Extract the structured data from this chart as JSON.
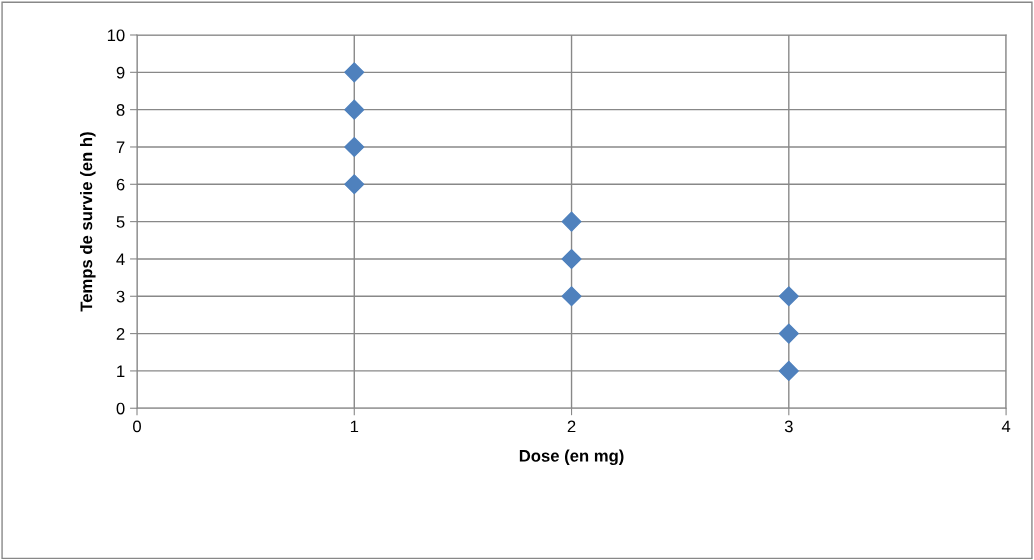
{
  "chart_data": {
    "type": "scatter",
    "xlabel": "Dose (en mg)",
    "ylabel": "Temps de survie (en h)",
    "x": [
      1,
      1,
      1,
      1,
      2,
      2,
      2,
      3,
      3,
      3
    ],
    "series": [
      {
        "color": "#4f81bd",
        "values": [
          9,
          8,
          7,
          6,
          5,
          4,
          3,
          3,
          2,
          1
        ]
      }
    ],
    "xlim": [
      0,
      4
    ],
    "ylim": [
      0,
      10
    ],
    "xticks": [
      0,
      1,
      2,
      3,
      4
    ],
    "yticks": [
      0,
      1,
      2,
      3,
      4,
      5,
      6,
      7,
      8,
      9,
      10
    ],
    "grid": true,
    "marker": "diamond"
  }
}
